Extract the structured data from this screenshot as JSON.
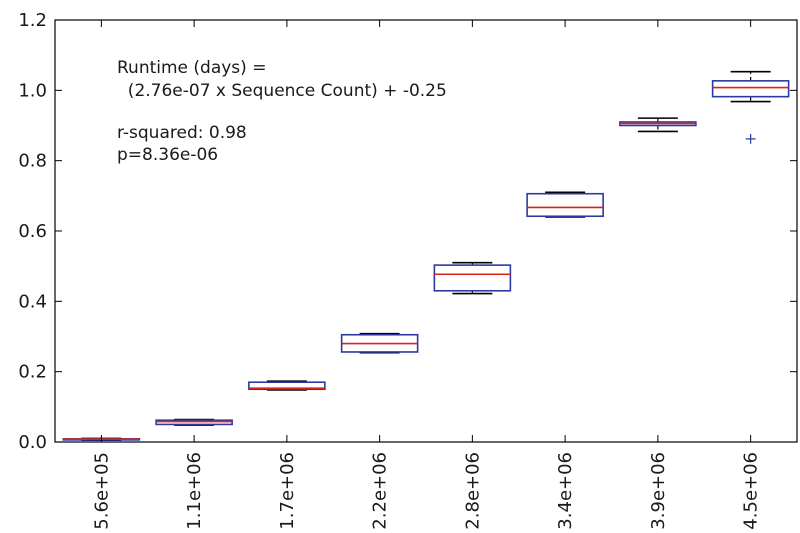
{
  "chart_data": {
    "type": "box",
    "title": "",
    "xlabel": "",
    "ylabel": "",
    "ylim": [
      0.0,
      1.2
    ],
    "yticks": [
      "0.0",
      "0.2",
      "0.4",
      "0.6",
      "0.8",
      "1.0",
      "1.2"
    ],
    "categories": [
      "5.6e+05",
      "1.1e+06",
      "1.7e+06",
      "2.2e+06",
      "2.8e+06",
      "3.4e+06",
      "3.9e+06",
      "4.5e+06"
    ],
    "boxes": [
      {
        "whisker_low": 0.005,
        "q1": 0.006,
        "median": 0.008,
        "q3": 0.009,
        "whisker_high": 0.01,
        "outliers": []
      },
      {
        "whisker_low": 0.048,
        "q1": 0.05,
        "median": 0.058,
        "q3": 0.062,
        "whisker_high": 0.064,
        "outliers": []
      },
      {
        "whisker_low": 0.148,
        "q1": 0.15,
        "median": 0.153,
        "q3": 0.17,
        "whisker_high": 0.173,
        "outliers": []
      },
      {
        "whisker_low": 0.254,
        "q1": 0.256,
        "median": 0.28,
        "q3": 0.305,
        "whisker_high": 0.308,
        "outliers": []
      },
      {
        "whisker_low": 0.422,
        "q1": 0.43,
        "median": 0.477,
        "q3": 0.503,
        "whisker_high": 0.51,
        "outliers": []
      },
      {
        "whisker_low": 0.64,
        "q1": 0.642,
        "median": 0.667,
        "q3": 0.706,
        "whisker_high": 0.71,
        "outliers": []
      },
      {
        "whisker_low": 0.883,
        "q1": 0.9,
        "median": 0.906,
        "q3": 0.91,
        "whisker_high": 0.921,
        "outliers": []
      },
      {
        "whisker_low": 0.968,
        "q1": 0.982,
        "median": 1.008,
        "q3": 1.027,
        "whisker_high": 1.053,
        "outliers": [
          0.862
        ]
      }
    ],
    "annotation": {
      "line1": "Runtime (days) =",
      "line2": "  (2.76e-07 x Sequence Count) + -0.25",
      "line3": "r-squared: 0.98",
      "line4": "p=8.36e-06"
    },
    "colors": {
      "box": "#2b3a9f",
      "median": "#e0201b",
      "whisker": "#000000",
      "outlier": "#2b3a9f"
    },
    "grid": false,
    "legend": "none"
  }
}
